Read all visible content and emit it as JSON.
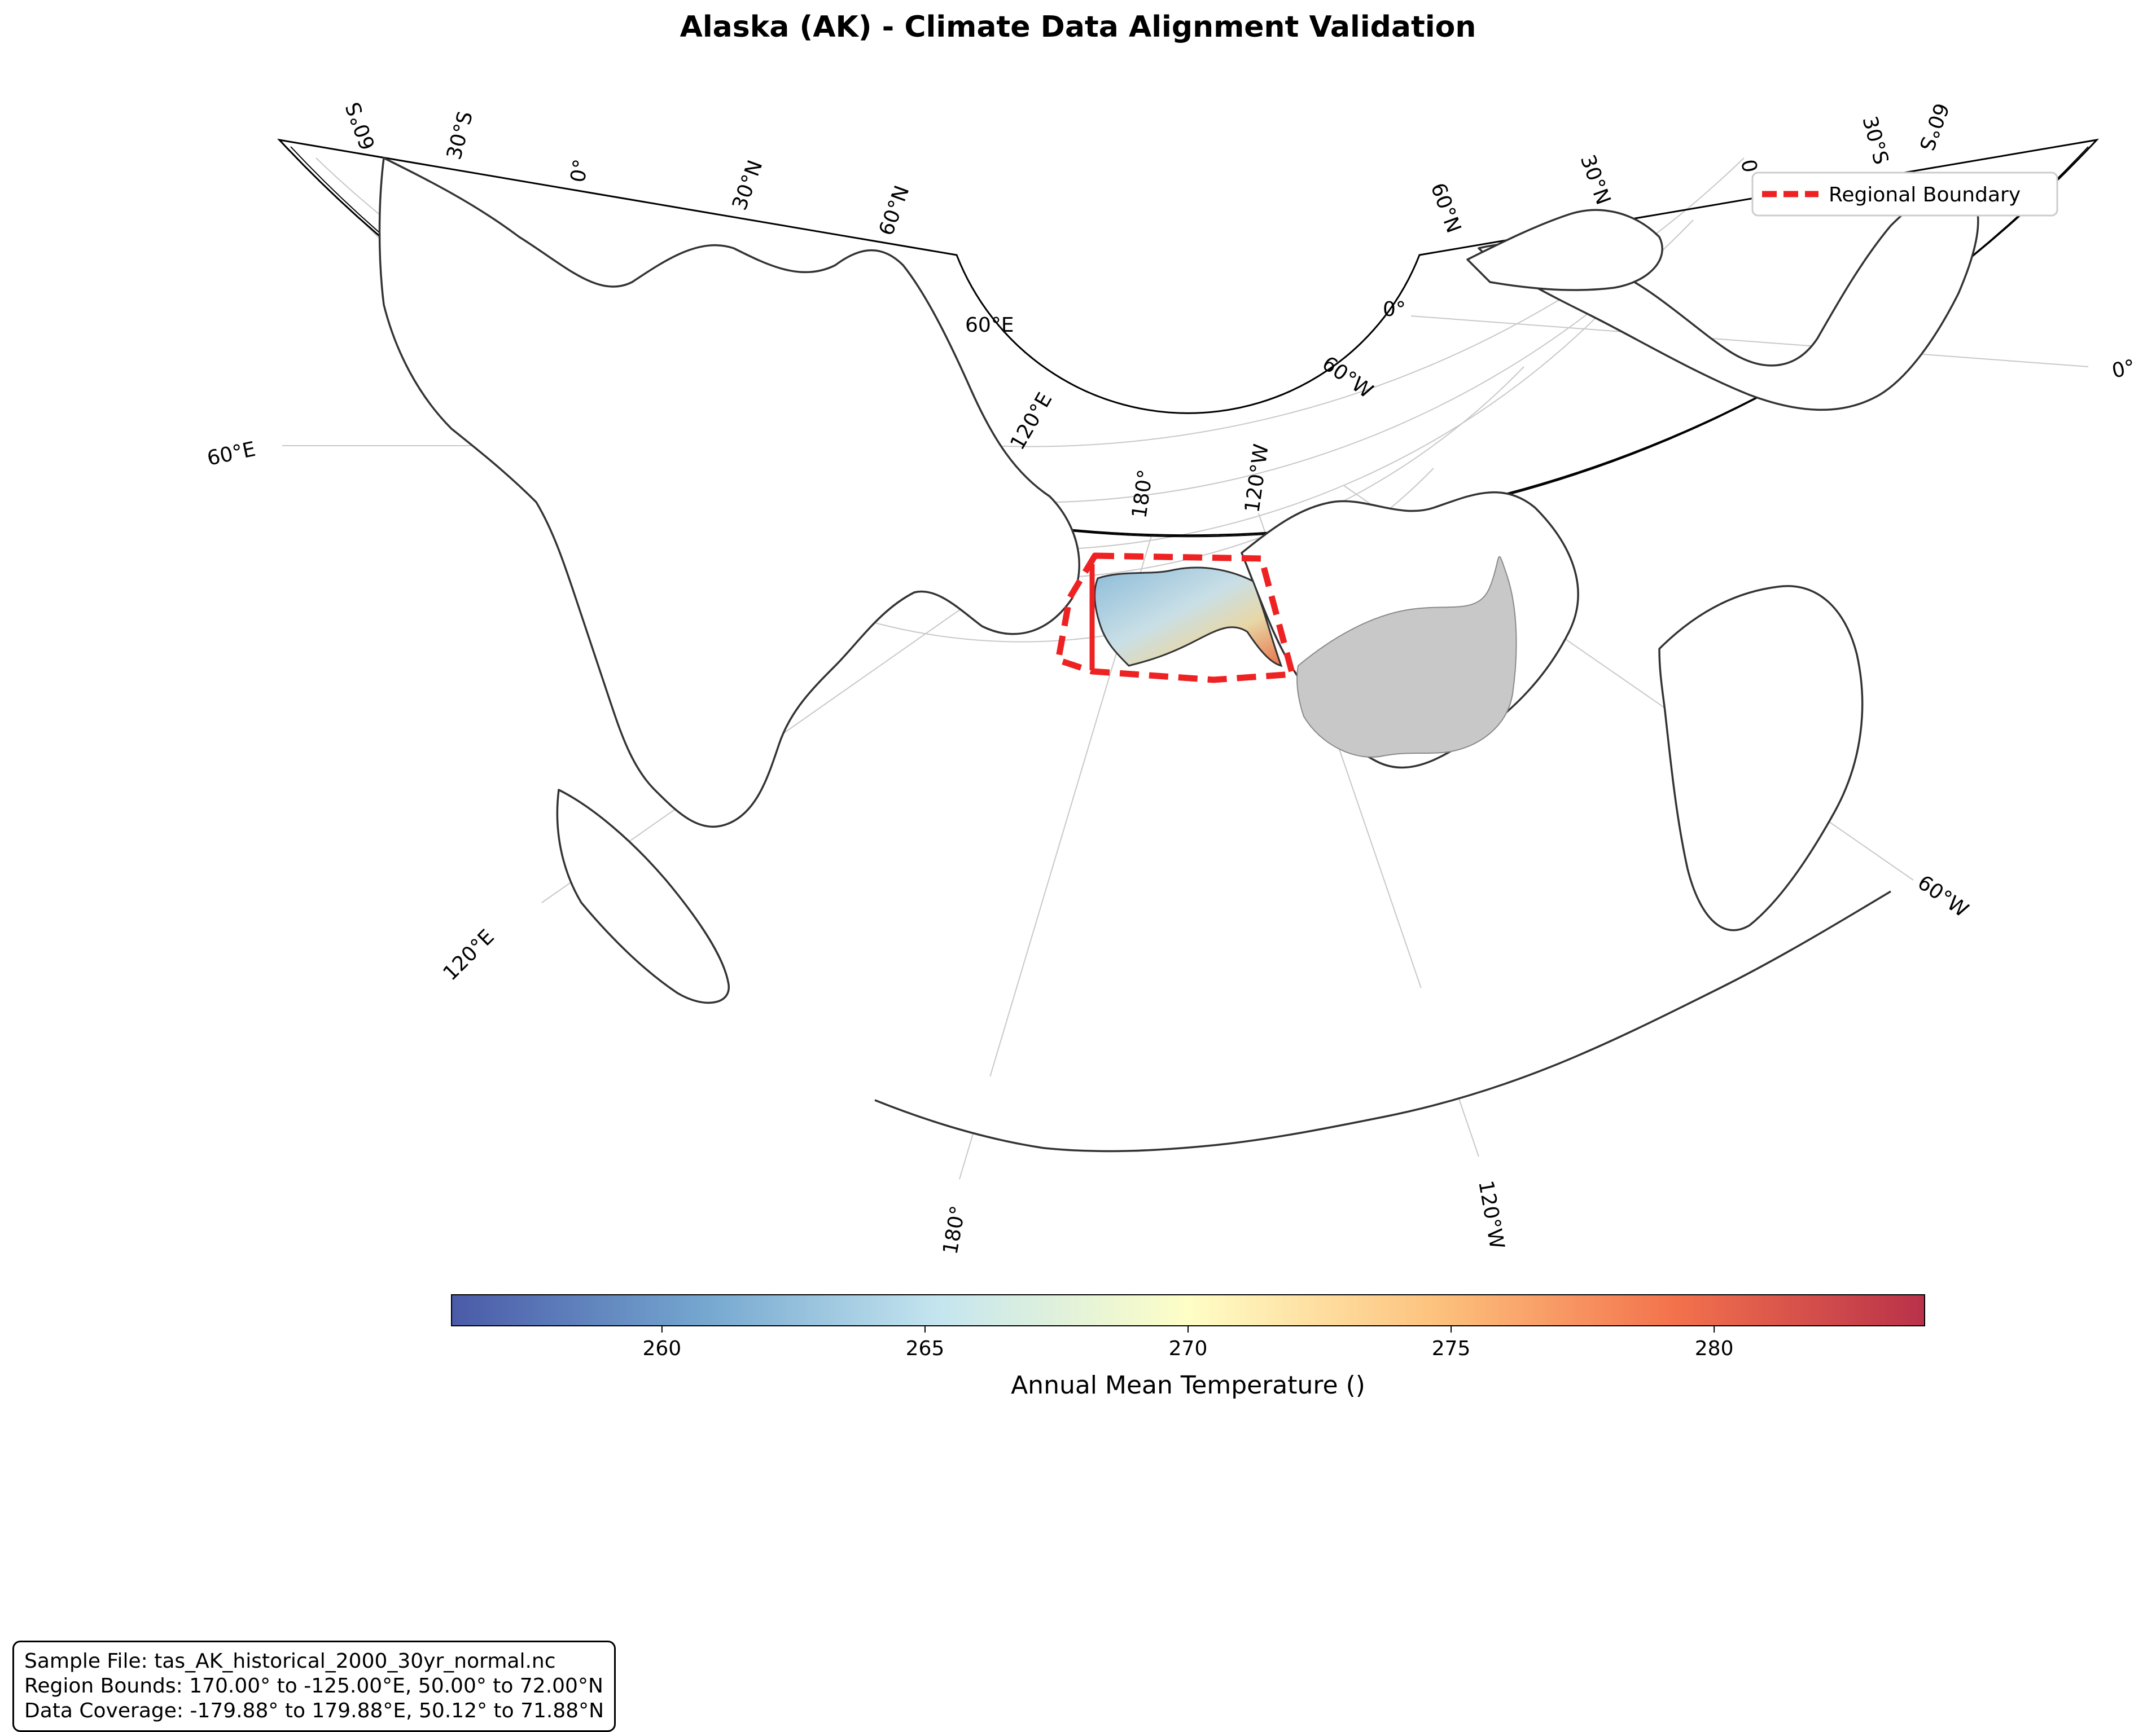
{
  "title": "Alaska (AK) - Climate Data Alignment Validation",
  "legend": {
    "entries": [
      {
        "label": "Regional Boundary",
        "color": "#ee2222",
        "style": "dashed"
      }
    ],
    "placement": "upper-right"
  },
  "map": {
    "projection": "Lambert Conformal Conic (north polar, cone opened at top)",
    "highlighted_region": "Alaska",
    "shaded_region": "Contiguous United States",
    "shaded_color": "#c8c8c8",
    "region_bounds": {
      "lon_min": 170.0,
      "lon_max": -125.0,
      "lat_min": 50.0,
      "lat_max": 72.0
    },
    "gridline_labels": {
      "left_arc_top": [
        "60°S",
        "30°S",
        "0°",
        "30°N",
        "60°N"
      ],
      "right_arc_top": [
        "60°N",
        "30°N",
        "0°",
        "30°S",
        "60°S"
      ],
      "inner_arc": [
        "60°E",
        "120°E",
        "180°",
        "120°W",
        "60°W",
        "0°"
      ],
      "outer_left": [
        "60°E",
        "120°E"
      ],
      "outer_bottom": [
        "180°",
        "120°W"
      ],
      "outer_right": [
        "0°",
        "60°W"
      ]
    }
  },
  "colorbar": {
    "label": "Annual Mean Temperature ()",
    "min": 256,
    "max": 284,
    "ticks": [
      "260",
      "265",
      "270",
      "275",
      "280"
    ],
    "tick_values": [
      260,
      265,
      270,
      275,
      280
    ],
    "colormap": "RdYlBu_r",
    "colors": [
      "#4a5aa8",
      "#74a6cf",
      "#c4e5ef",
      "#fefec6",
      "#fdc17d",
      "#f3724c",
      "#b9314a"
    ]
  },
  "info_box": {
    "line1": "Sample File: tas_AK_historical_2000_30yr_normal.nc",
    "line2": "Region Bounds: 170.00° to -125.00°E, 50.00° to 72.00°N",
    "line3": "Data Coverage: -179.88° to 179.88°E, 50.12° to 71.88°N"
  }
}
